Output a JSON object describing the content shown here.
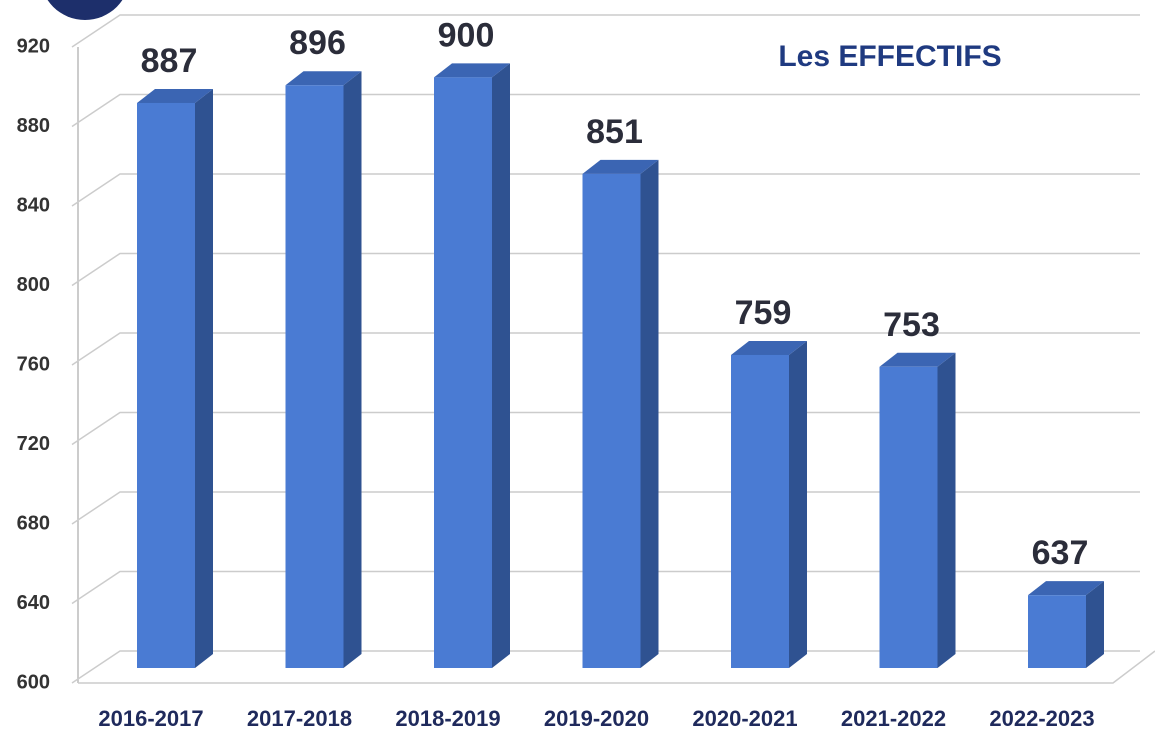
{
  "chart_data": {
    "type": "bar3d",
    "title": "Les EFFECTIFS",
    "categories": [
      "2016-2017",
      "2017-2018",
      "2018-2019",
      "2019-2020",
      "2020-2021",
      "2021-2022",
      "2022-2023"
    ],
    "values": [
      887,
      896,
      900,
      851,
      759,
      753,
      637
    ],
    "color": "#4a7bd3",
    "ylim": [
      600,
      920
    ],
    "yticks": [
      600,
      640,
      680,
      720,
      760,
      800,
      840,
      880,
      920
    ],
    "grid": true
  }
}
